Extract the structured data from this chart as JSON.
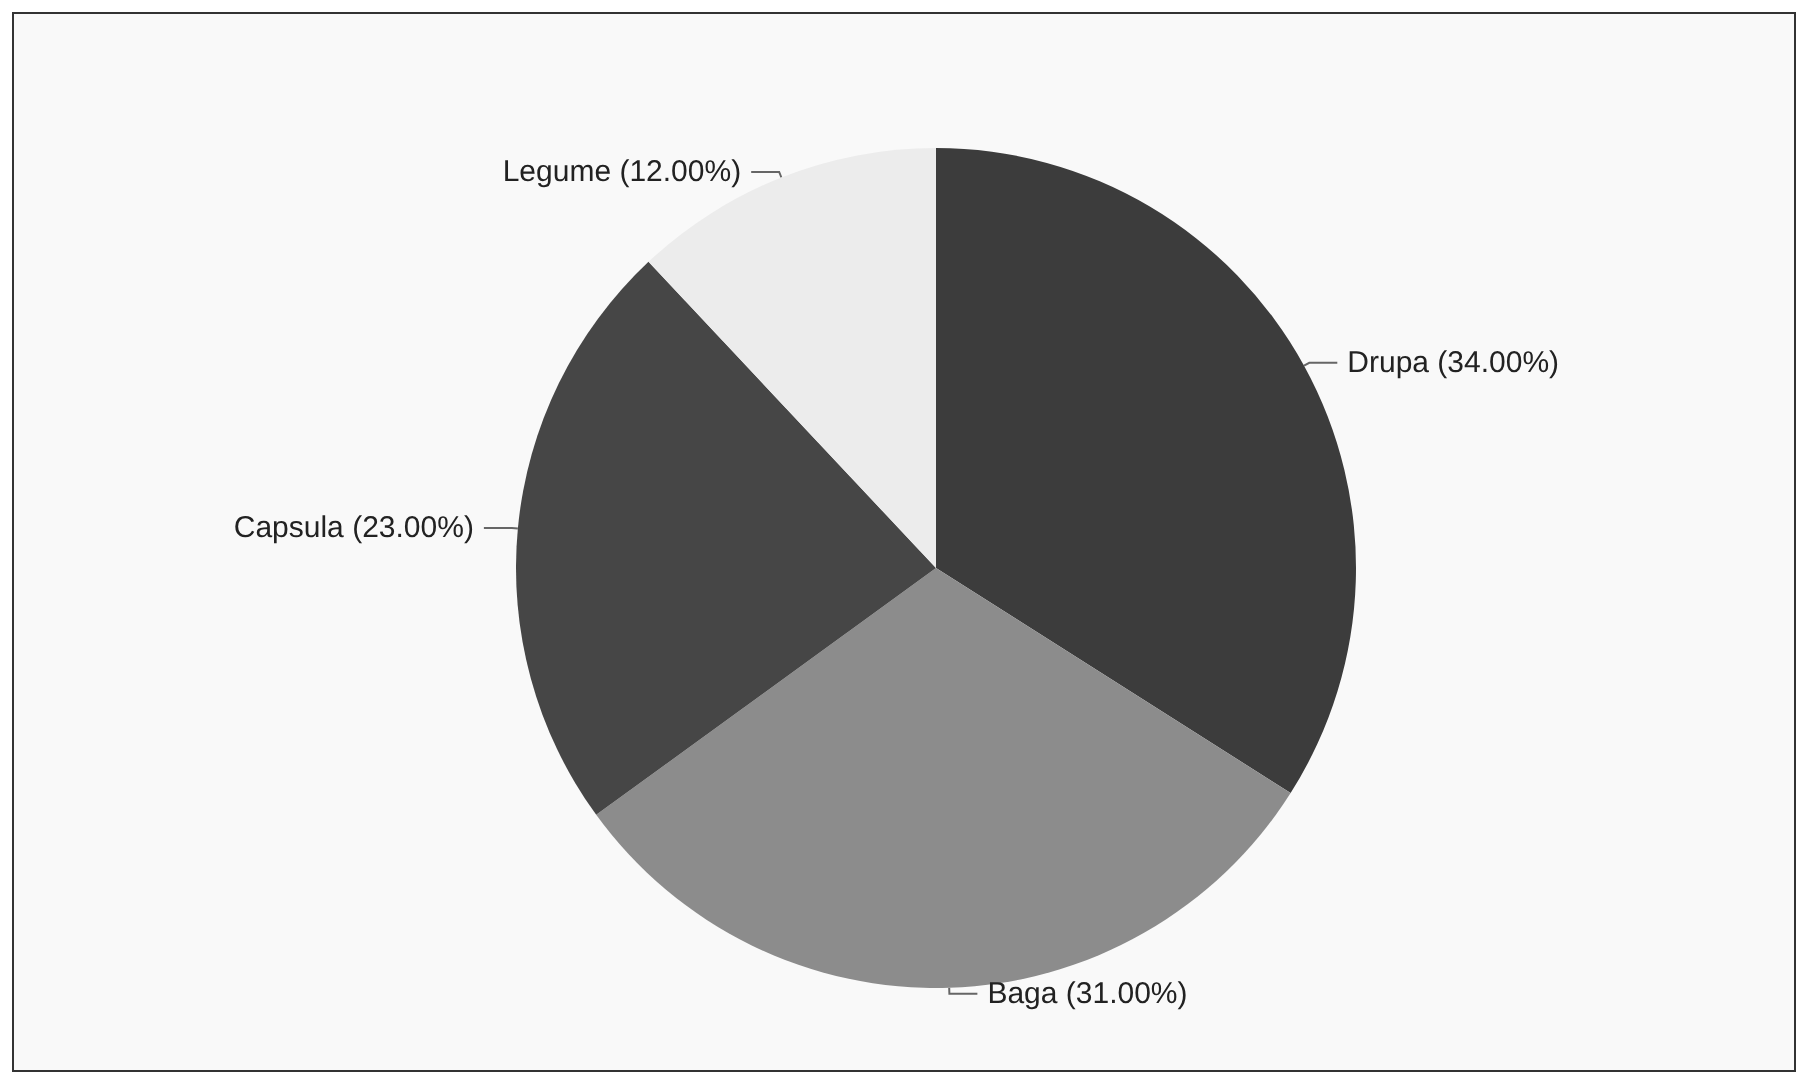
{
  "chart_data": {
    "type": "pie",
    "categories": [
      "Drupa",
      "Baga",
      "Capsula",
      "Legume"
    ],
    "values": [
      34,
      31,
      23,
      12
    ],
    "value_labels": [
      "(34.00%)",
      "(31.00%)",
      "(23.00%)",
      "(12.00%)"
    ],
    "colors": [
      "#3c3c3c",
      "#8c8c8c",
      "#464646",
      "#ececec"
    ]
  }
}
